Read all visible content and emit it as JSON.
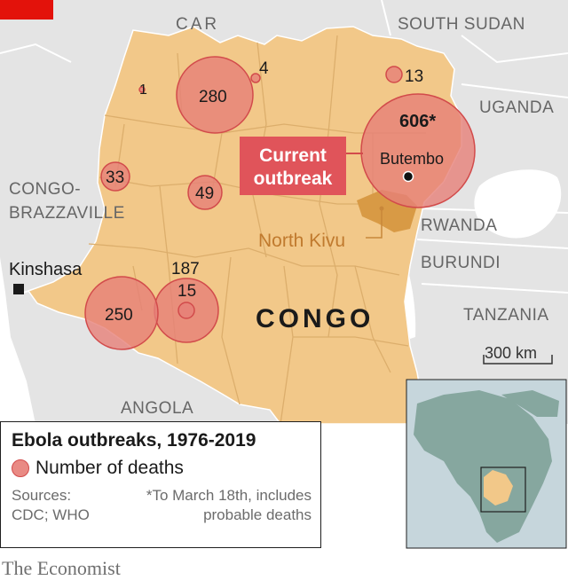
{
  "colors": {
    "drc_fill": "#f2c889",
    "neighbor_fill": "#e4e4e4",
    "water": "#ffffff",
    "bubble_fill": "#e67f78",
    "bubble_stroke": "#d24b4b",
    "accent_red": "#e3120b",
    "north_kivu": "#d89a45"
  },
  "map": {
    "countries": {
      "car": "CAR",
      "south_sudan": "SOUTH SUDAN",
      "uganda": "UGANDA",
      "congo_brazzaville_1": "CONGO-",
      "congo_brazzaville_2": "BRAZZAVILLE",
      "rwanda": "RWANDA",
      "burundi": "BURUNDI",
      "tanzania": "TANZANIA",
      "angola": "ANGOLA",
      "congo": "CONGO"
    },
    "places": {
      "kinshasa": "Kinshasa",
      "butembo": "Butembo",
      "north_kivu": "North Kivu"
    },
    "callout": {
      "line1": "Current",
      "line2": "outbreak"
    },
    "scale": "300 km"
  },
  "outbreaks": [
    {
      "label": "1",
      "deaths": 1
    },
    {
      "label": "4",
      "deaths": 4
    },
    {
      "label": "280",
      "deaths": 280
    },
    {
      "label": "13",
      "deaths": 13
    },
    {
      "label": "606*",
      "deaths": 606,
      "current": true
    },
    {
      "label": "33",
      "deaths": 33
    },
    {
      "label": "49",
      "deaths": 49
    },
    {
      "label": "187",
      "deaths": 187
    },
    {
      "label": "15",
      "deaths": 15
    },
    {
      "label": "250",
      "deaths": 250
    }
  ],
  "legend": {
    "title": "Ebola outbreaks, 1976-2019",
    "item": "Number of deaths",
    "sources_1": "Sources:",
    "sources_2": "CDC; WHO",
    "note_1": "*To March 18th, includes",
    "note_2": "probable deaths"
  },
  "publisher": "The Economist"
}
